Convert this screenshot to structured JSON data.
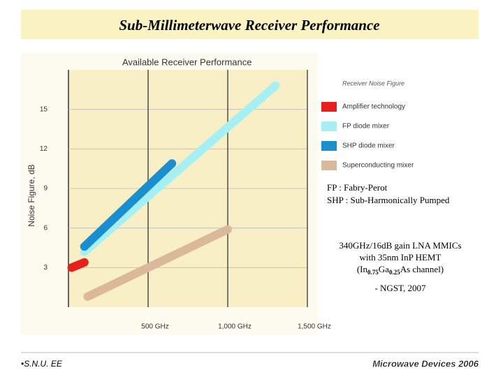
{
  "slide": {
    "title": "Sub-Millimeterwave Receiver Performance",
    "notes": [
      "FP : Fabry-Perot",
      "SHP : Sub-Harmonically Pumped"
    ],
    "highlight": {
      "line1": "340GHz/16dB gain LNA MMICs",
      "line2": "with 35nm InP HEMT",
      "line3": [
        "(In",
        "0.75",
        "Ga",
        "0.25",
        "As channel)"
      ],
      "source": "- NGST, 2007"
    },
    "footer_left": "•S.N.U. EE",
    "footer_right": "Microwave Devices 2006"
  },
  "chart_data": {
    "type": "line",
    "title": "Available Receiver Performance",
    "y_label": "Noise Figure, dB",
    "legend_title": "Receiver Noise Figure",
    "xlim": [
      0,
      1500
    ],
    "xticks": [
      {
        "value": 500,
        "label": "500 GHz"
      },
      {
        "value": 1000,
        "label": "1,000 GHz"
      },
      {
        "value": 1500,
        "label": "1,500 GHz"
      }
    ],
    "ylim": [
      0,
      18
    ],
    "yticks": [
      3,
      6,
      9,
      12,
      15
    ],
    "grid": true,
    "series": [
      {
        "name": "Amplifier technology",
        "color": "#e8201c",
        "x": [
          20,
          100
        ],
        "values": [
          3.0,
          3.4
        ]
      },
      {
        "name": "FP diode mixer",
        "color": "#a6f0f4",
        "x": [
          100,
          1300
        ],
        "values": [
          4.2,
          16.8
        ]
      },
      {
        "name": "SHP diode mixer",
        "color": "#1a8fd0",
        "x": [
          100,
          650
        ],
        "values": [
          4.6,
          10.9
        ]
      },
      {
        "name": "Superconducting mixer",
        "color": "#d9b99a",
        "x": [
          120,
          1000
        ],
        "values": [
          0.8,
          5.9
        ]
      }
    ]
  }
}
